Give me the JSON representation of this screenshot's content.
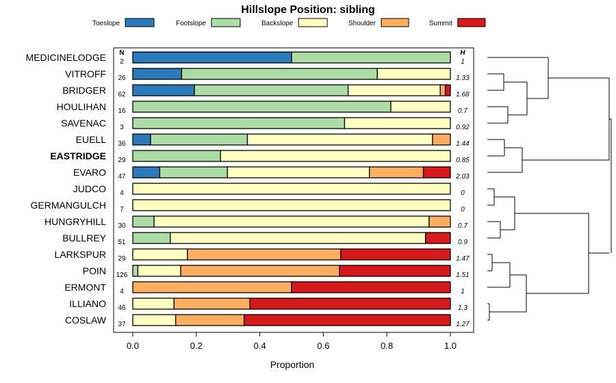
{
  "chart_data": {
    "type": "bar",
    "stacked": true,
    "orientation": "horizontal",
    "title": "Hillslope Position: sibling",
    "xlabel": "Proportion",
    "ylabel": "",
    "xlim": [
      0,
      1
    ],
    "x_ticks": [
      "0.0",
      "0.2",
      "0.4",
      "0.6",
      "0.8",
      "1.0"
    ],
    "n_header": "N",
    "h_header": "H",
    "bold_category": "EASTRIDGE",
    "series": [
      {
        "name": "Toeslope",
        "color": "#2b7bba"
      },
      {
        "name": "Footslope",
        "color": "#abdda4"
      },
      {
        "name": "Backslope",
        "color": "#ffffbf"
      },
      {
        "name": "Shoulder",
        "color": "#fdae61"
      },
      {
        "name": "Summit",
        "color": "#d7191c"
      }
    ],
    "categories": [
      {
        "name": "MEDICINELODGE",
        "n": "2",
        "h": "1",
        "values": [
          0.5,
          0.5,
          0,
          0,
          0
        ]
      },
      {
        "name": "VITROFF",
        "n": "26",
        "h": "1.33",
        "values": [
          0.154,
          0.616,
          0.23,
          0,
          0
        ]
      },
      {
        "name": "BRIDGER",
        "n": "62",
        "h": "1.68",
        "values": [
          0.194,
          0.484,
          0.29,
          0.016,
          0.016
        ]
      },
      {
        "name": "HOULIHAN",
        "n": "16",
        "h": "0.7",
        "values": [
          0,
          0.8125,
          0.1875,
          0,
          0
        ]
      },
      {
        "name": "SAVENAC",
        "n": "3",
        "h": "0.92",
        "values": [
          0,
          0.667,
          0.333,
          0,
          0
        ]
      },
      {
        "name": "EUELL",
        "n": "36",
        "h": "1.44",
        "values": [
          0.056,
          0.305,
          0.583,
          0.056,
          0
        ]
      },
      {
        "name": "EASTRIDGE",
        "n": "29",
        "h": "0.85",
        "values": [
          0,
          0.276,
          0.724,
          0,
          0
        ]
      },
      {
        "name": "EVARO",
        "n": "47",
        "h": "2.03",
        "values": [
          0.085,
          0.213,
          0.447,
          0.17,
          0.085
        ]
      },
      {
        "name": "JUDCO",
        "n": "4",
        "h": "0",
        "values": [
          0,
          0,
          1,
          0,
          0
        ]
      },
      {
        "name": "GERMANGULCH",
        "n": "7",
        "h": "0",
        "values": [
          0,
          0,
          1,
          0,
          0
        ]
      },
      {
        "name": "HUNGRYHILL",
        "n": "30",
        "h": "0.7",
        "values": [
          0,
          0.067,
          0.866,
          0.067,
          0
        ]
      },
      {
        "name": "BULLREY",
        "n": "51",
        "h": "0.9",
        "values": [
          0,
          0.118,
          0.804,
          0,
          0.078
        ]
      },
      {
        "name": "LARKSPUR",
        "n": "29",
        "h": "1.47",
        "values": [
          0,
          0,
          0.172,
          0.483,
          0.345
        ]
      },
      {
        "name": "POIN",
        "n": "126",
        "h": "1.51",
        "values": [
          0,
          0.016,
          0.135,
          0.5,
          0.349
        ]
      },
      {
        "name": "ERMONT",
        "n": "4",
        "h": "1",
        "values": [
          0,
          0,
          0,
          0.5,
          0.5
        ]
      },
      {
        "name": "ILLIANO",
        "n": "46",
        "h": "1.3",
        "values": [
          0,
          0,
          0.13,
          0.239,
          0.631
        ]
      },
      {
        "name": "COSLAW",
        "n": "37",
        "h": "1.27",
        "values": [
          0,
          0,
          0.135,
          0.216,
          0.649
        ]
      }
    ]
  }
}
